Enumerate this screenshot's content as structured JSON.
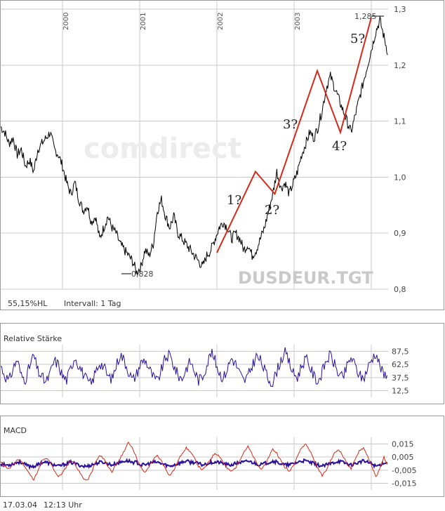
{
  "main": {
    "watermark": "comdirect",
    "symbol": "DUSDEUR.TGT",
    "info_left": "55,15%HL",
    "interval": "Intervall: 1 Tag",
    "low_label": "0,828",
    "high_label": "1,285"
  },
  "rsi": {
    "title": "Relative Stärke"
  },
  "macd": {
    "title": "MACD"
  },
  "footer": {
    "date": "17.03.04",
    "time": "12:13 Uhr"
  },
  "colors": {
    "price": "#000000",
    "wave": "#d42a1a",
    "rsi": "#2a109a",
    "macd_fast": "#d42a1a",
    "macd_hist": "#2a109a",
    "grid": "#c8c8c8"
  },
  "chart_data": [
    {
      "type": "line",
      "title": "",
      "x_tick_labels": [
        "2000",
        "2001",
        "2002",
        "2003"
      ],
      "ylim": [
        0.8,
        1.3
      ],
      "y_ticks": [
        "0,8",
        "0,9",
        "1,0",
        "1,1",
        "1,2",
        "1,3"
      ],
      "y_tick_values": [
        0.8,
        0.9,
        1.0,
        1.1,
        1.2,
        1.3
      ],
      "grid": true,
      "series": [
        {
          "values": [
            1.09,
            1.08,
            1.06,
            1.07,
            1.04,
            1.05,
            1.02,
            1.03,
            1.01,
            1.05,
            1.06,
            1.07,
            1.08,
            1.05,
            1.04,
            1.02,
            0.99,
            0.97,
            0.99,
            0.96,
            0.94,
            0.95,
            0.92,
            0.93,
            0.89,
            0.91,
            0.93,
            0.91,
            0.9,
            0.88,
            0.87,
            0.86,
            0.85,
            0.83,
            0.84,
            0.87,
            0.86,
            0.88,
            0.94,
            0.96,
            0.93,
            0.91,
            0.93,
            0.9,
            0.89,
            0.88,
            0.87,
            0.86,
            0.85,
            0.84,
            0.86,
            0.87,
            0.89,
            0.91,
            0.92,
            0.91,
            0.89,
            0.9,
            0.89,
            0.87,
            0.88,
            0.86,
            0.87,
            0.89,
            0.91,
            0.94,
            0.97,
            1.01,
            0.98,
            0.99,
            0.97,
            0.99,
            1.01,
            1.04,
            1.06,
            1.08,
            1.07,
            1.09,
            1.12,
            1.16,
            1.18,
            1.16,
            1.14,
            1.12,
            1.1,
            1.08,
            1.11,
            1.14,
            1.17,
            1.2,
            1.23,
            1.26,
            1.28,
            1.25,
            1.22
          ]
        }
      ],
      "annotations": {
        "wave_labels": [
          "1?",
          "2?",
          "3?",
          "4?",
          "5?"
        ],
        "wave_points": [
          [
            0.865,
            2002
          ],
          [
            1.01,
            2002.5
          ],
          [
            0.97,
            2002.75
          ],
          [
            1.19,
            2003.3
          ],
          [
            1.08,
            2003.6
          ],
          [
            1.285,
            2004.0
          ]
        ]
      }
    },
    {
      "type": "line",
      "title": "Relative Stärke",
      "ylim": [
        0,
        100
      ],
      "y_ticks": [
        "12,5",
        "37,5",
        "62,5",
        "87,5"
      ],
      "y_tick_values": [
        12.5,
        37.5,
        62.5,
        87.5
      ],
      "grid": true,
      "series": [
        {
          "values": [
            60,
            42,
            30,
            55,
            72,
            40,
            35,
            58,
            80,
            50,
            38,
            28,
            45,
            70,
            62,
            40,
            33,
            55,
            78,
            60,
            45,
            30,
            25,
            48,
            66,
            58,
            40,
            35,
            60,
            82,
            70,
            50,
            32,
            45,
            65,
            72,
            55,
            38,
            30,
            52,
            75,
            80,
            60,
            42,
            35,
            55,
            68,
            50,
            32,
            40,
            62,
            85,
            70,
            48,
            36,
            55,
            75,
            64,
            45,
            30,
            40,
            60,
            78,
            70,
            52,
            34,
            28,
            50,
            72,
            84,
            66,
            45,
            38,
            60,
            74,
            58,
            40,
            30,
            48,
            70,
            80,
            62,
            44,
            36,
            58,
            76,
            60,
            42,
            35,
            55,
            72,
            85,
            60,
            40,
            52
          ]
        }
      ]
    },
    {
      "type": "line",
      "title": "MACD",
      "ylim": [
        -0.02,
        0.02
      ],
      "y_ticks": [
        "0,015",
        "0,005",
        "-0,005",
        "-0,015"
      ],
      "y_tick_values": [
        0.015,
        0.005,
        -0.005,
        -0.015
      ],
      "grid": true,
      "series": [
        {
          "values": [
            0.001,
            -0.002,
            -0.004,
            -0.001,
            0.003,
            0.002,
            -0.003,
            -0.008,
            -0.012,
            -0.006,
            0.002,
            0.004,
            0.001,
            -0.005,
            -0.01,
            -0.007,
            -0.002,
            0.003,
            0.0,
            -0.006,
            -0.011,
            -0.013,
            -0.007,
            0.001,
            0.006,
            0.004,
            -0.002,
            -0.006,
            -0.001,
            0.004,
            0.01,
            0.016,
            0.012,
            0.004,
            -0.003,
            -0.007,
            -0.002,
            0.003,
            0.006,
            0.002,
            -0.004,
            -0.009,
            -0.005,
            0.002,
            0.008,
            0.012,
            0.009,
            0.004,
            -0.002,
            -0.005,
            -0.001,
            0.004,
            0.008,
            0.006,
            0.001,
            -0.004,
            -0.006,
            -0.003,
            0.003,
            0.009,
            0.013,
            0.007,
            0.001,
            -0.004,
            -0.002,
            0.005,
            0.011,
            0.008,
            0.002,
            -0.003,
            -0.006,
            -0.001,
            0.006,
            0.012,
            0.015,
            0.01,
            0.003,
            -0.004,
            -0.009,
            -0.005,
            0.002,
            0.008,
            0.011,
            0.006,
            0.0,
            -0.004,
            0.003,
            0.01,
            0.012,
            0.006,
            -0.002,
            -0.01,
            -0.004,
            0.005,
            -0.003
          ]
        },
        {
          "values": [
            0.0,
            -0.001,
            -0.001,
            0.0,
            0.001,
            0.001,
            -0.001,
            -0.002,
            -0.002,
            -0.001,
            0.001,
            0.001,
            0.0,
            -0.001,
            -0.002,
            -0.001,
            0.0,
            0.001,
            0.0,
            -0.001,
            -0.002,
            -0.002,
            -0.001,
            0.0,
            0.001,
            0.001,
            0.0,
            -0.001,
            0.0,
            0.001,
            0.002,
            0.002,
            0.001,
            0.001,
            -0.001,
            -0.001,
            0.0,
            0.001,
            0.001,
            0.0,
            -0.001,
            -0.002,
            -0.001,
            0.0,
            0.001,
            0.002,
            0.001,
            0.001,
            0.0,
            -0.001,
            0.0,
            0.001,
            0.001,
            0.001,
            0.0,
            -0.001,
            -0.001,
            0.0,
            0.001,
            0.001,
            0.002,
            0.001,
            0.0,
            -0.001,
            0.0,
            0.001,
            0.002,
            0.001,
            0.0,
            -0.001,
            -0.001,
            0.0,
            0.001,
            0.002,
            0.002,
            0.001,
            0.0,
            -0.001,
            -0.002,
            -0.001,
            0.0,
            0.001,
            0.002,
            0.001,
            0.0,
            -0.001,
            0.0,
            0.001,
            0.002,
            0.001,
            0.0,
            -0.002,
            -0.001,
            0.001,
            0.0
          ]
        }
      ]
    }
  ]
}
